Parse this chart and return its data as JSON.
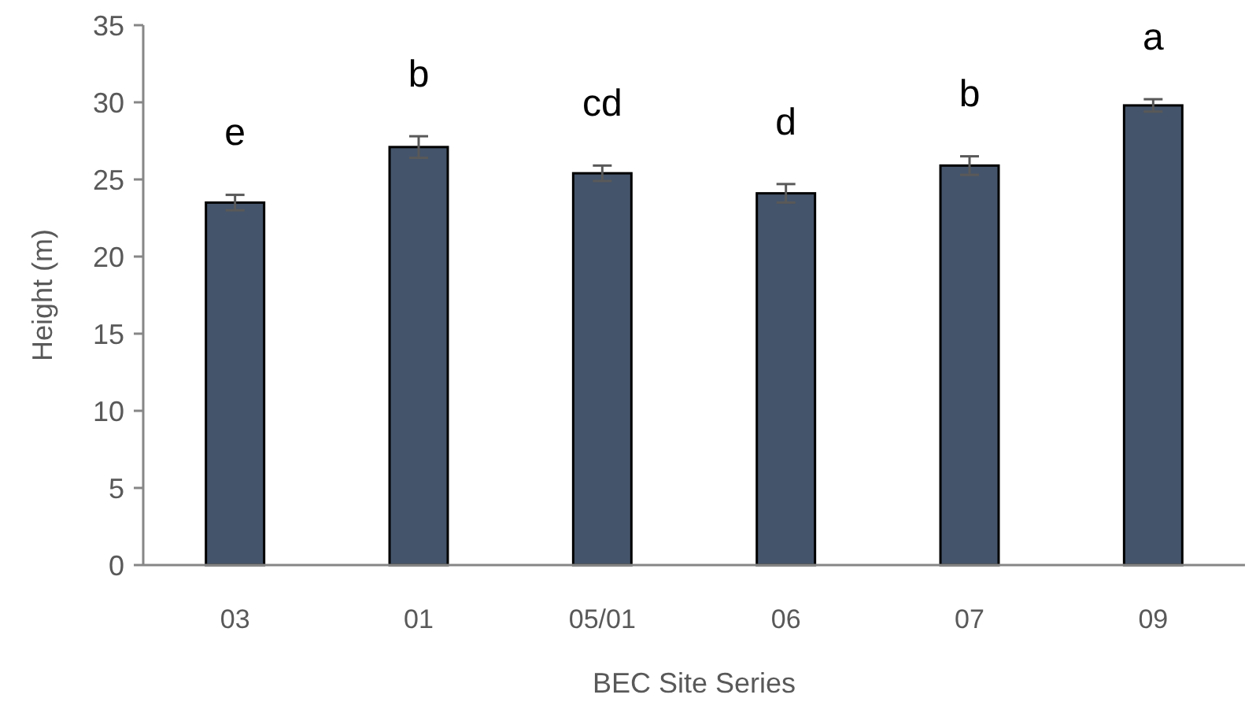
{
  "chart_data": {
    "type": "bar",
    "xlabel": "BEC Site Series",
    "ylabel": "Height (m)",
    "categories": [
      "03",
      "01",
      "05/01",
      "06",
      "07",
      "09"
    ],
    "values": [
      23.5,
      27.1,
      25.4,
      24.1,
      25.9,
      29.8
    ],
    "errors": [
      0.5,
      0.7,
      0.5,
      0.6,
      0.6,
      0.4
    ],
    "color": "#44546a",
    "ylim": [
      0,
      35
    ],
    "yticks": [
      0,
      5,
      10,
      15,
      20,
      25,
      30,
      35
    ],
    "annotations": [
      "e",
      "b",
      "cd",
      "d",
      "b",
      "a"
    ]
  }
}
